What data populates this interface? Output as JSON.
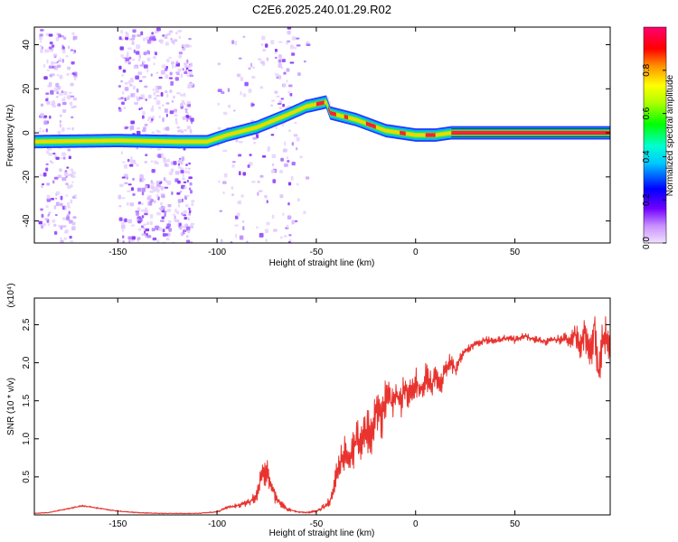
{
  "title": "C2E6.2025.240.01.29.R02",
  "spectrogram": {
    "type": "heatmap",
    "xlabel": "Height of straight line (km)",
    "ylabel": "Frequency (Hz)",
    "xlim": [
      -192,
      98
    ],
    "ylim": [
      -50,
      48
    ],
    "xticks": [
      -150,
      -100,
      -50,
      0,
      50
    ],
    "xtick_labels": [
      "-150",
      "-100",
      "-50",
      "0",
      "50"
    ],
    "yticks": [
      -40,
      -20,
      0,
      20,
      40
    ],
    "ytick_labels": [
      "-40",
      "-20",
      "0",
      "20",
      "40"
    ],
    "ridge": [
      {
        "x": -192,
        "y": -4
      },
      {
        "x": -150,
        "y": -3.5
      },
      {
        "x": -120,
        "y": -4
      },
      {
        "x": -105,
        "y": -4
      },
      {
        "x": -95,
        "y": -1
      },
      {
        "x": -80,
        "y": 2.5
      },
      {
        "x": -65,
        "y": 8
      },
      {
        "x": -55,
        "y": 12
      },
      {
        "x": -45,
        "y": 14
      },
      {
        "x": -43,
        "y": 9
      },
      {
        "x": -30,
        "y": 6
      },
      {
        "x": -15,
        "y": 1
      },
      {
        "x": 0,
        "y": -1
      },
      {
        "x": 10,
        "y": -1
      },
      {
        "x": 18,
        "y": 0
      },
      {
        "x": 98,
        "y": 0
      }
    ],
    "colorbar": {
      "label": "Normalized spectral amplitude",
      "ticks": [
        0.0,
        0.2,
        0.4,
        0.6,
        0.8
      ],
      "tick_labels": [
        "0.0",
        "0.2",
        "0.4",
        "0.6",
        "0.8"
      ],
      "range": [
        0,
        1
      ]
    }
  },
  "chart_data": {
    "type": "line",
    "title": "C2E6.2025.240.01.29.R02",
    "xlabel": "Height of straight line (km)",
    "ylabel": "SNR (10 * v/v)",
    "scale_label": "(x10⁴)",
    "xlim": [
      -192,
      98
    ],
    "ylim": [
      0,
      2.85
    ],
    "xticks": [
      -150,
      -100,
      -50,
      0,
      50
    ],
    "xtick_labels": [
      "-150",
      "-100",
      "-50",
      "0",
      "50"
    ],
    "yticks": [
      0.5,
      1.0,
      1.5,
      2.0,
      2.5
    ],
    "ytick_labels": [
      "0.5",
      "1.0",
      "1.5",
      "2.0",
      "2.5"
    ],
    "color": "#e8332e",
    "series": [
      {
        "name": "SNR",
        "x": [
          -192,
          -185,
          -175,
          -168,
          -160,
          -150,
          -140,
          -130,
          -120,
          -110,
          -100,
          -95,
          -90,
          -85,
          -80,
          -77,
          -75,
          -72,
          -70,
          -65,
          -60,
          -55,
          -50,
          -45,
          -42,
          -40,
          -38,
          -35,
          -33,
          -30,
          -28,
          -25,
          -22,
          -20,
          -17,
          -15,
          -12,
          -10,
          -7,
          -5,
          -2,
          0,
          3,
          5,
          8,
          10,
          13,
          15,
          18,
          20,
          22,
          25,
          30,
          35,
          40,
          45,
          50,
          55,
          60,
          65,
          70,
          75,
          78,
          80,
          83,
          85,
          88,
          90,
          92,
          95,
          98
        ],
        "y": [
          0.02,
          0.03,
          0.08,
          0.12,
          0.09,
          0.05,
          0.03,
          0.02,
          0.02,
          0.02,
          0.04,
          0.1,
          0.12,
          0.15,
          0.25,
          0.55,
          0.6,
          0.35,
          0.2,
          0.08,
          0.04,
          0.03,
          0.05,
          0.12,
          0.25,
          0.5,
          0.7,
          0.85,
          0.75,
          0.95,
          1.0,
          1.1,
          1.05,
          1.4,
          1.25,
          1.55,
          1.45,
          1.6,
          1.5,
          1.7,
          1.55,
          1.75,
          1.65,
          1.8,
          1.7,
          1.85,
          1.75,
          1.95,
          2.0,
          1.9,
          2.05,
          2.15,
          2.25,
          2.3,
          2.28,
          2.32,
          2.3,
          2.35,
          2.3,
          2.28,
          2.3,
          2.32,
          2.25,
          2.4,
          2.2,
          2.45,
          2.1,
          2.5,
          1.8,
          2.4,
          2.2
        ],
        "noise": [
          0.005,
          0.005,
          0.01,
          0.01,
          0.01,
          0.008,
          0.006,
          0.005,
          0.005,
          0.005,
          0.01,
          0.02,
          0.03,
          0.04,
          0.1,
          0.2,
          0.22,
          0.15,
          0.08,
          0.03,
          0.01,
          0.01,
          0.02,
          0.05,
          0.1,
          0.18,
          0.22,
          0.25,
          0.25,
          0.28,
          0.3,
          0.32,
          0.3,
          0.3,
          0.28,
          0.28,
          0.26,
          0.26,
          0.24,
          0.24,
          0.22,
          0.22,
          0.2,
          0.2,
          0.18,
          0.18,
          0.16,
          0.15,
          0.12,
          0.1,
          0.08,
          0.06,
          0.05,
          0.05,
          0.05,
          0.05,
          0.05,
          0.05,
          0.05,
          0.05,
          0.06,
          0.08,
          0.1,
          0.15,
          0.2,
          0.25,
          0.28,
          0.3,
          0.35,
          0.3,
          0.25
        ]
      }
    ]
  }
}
